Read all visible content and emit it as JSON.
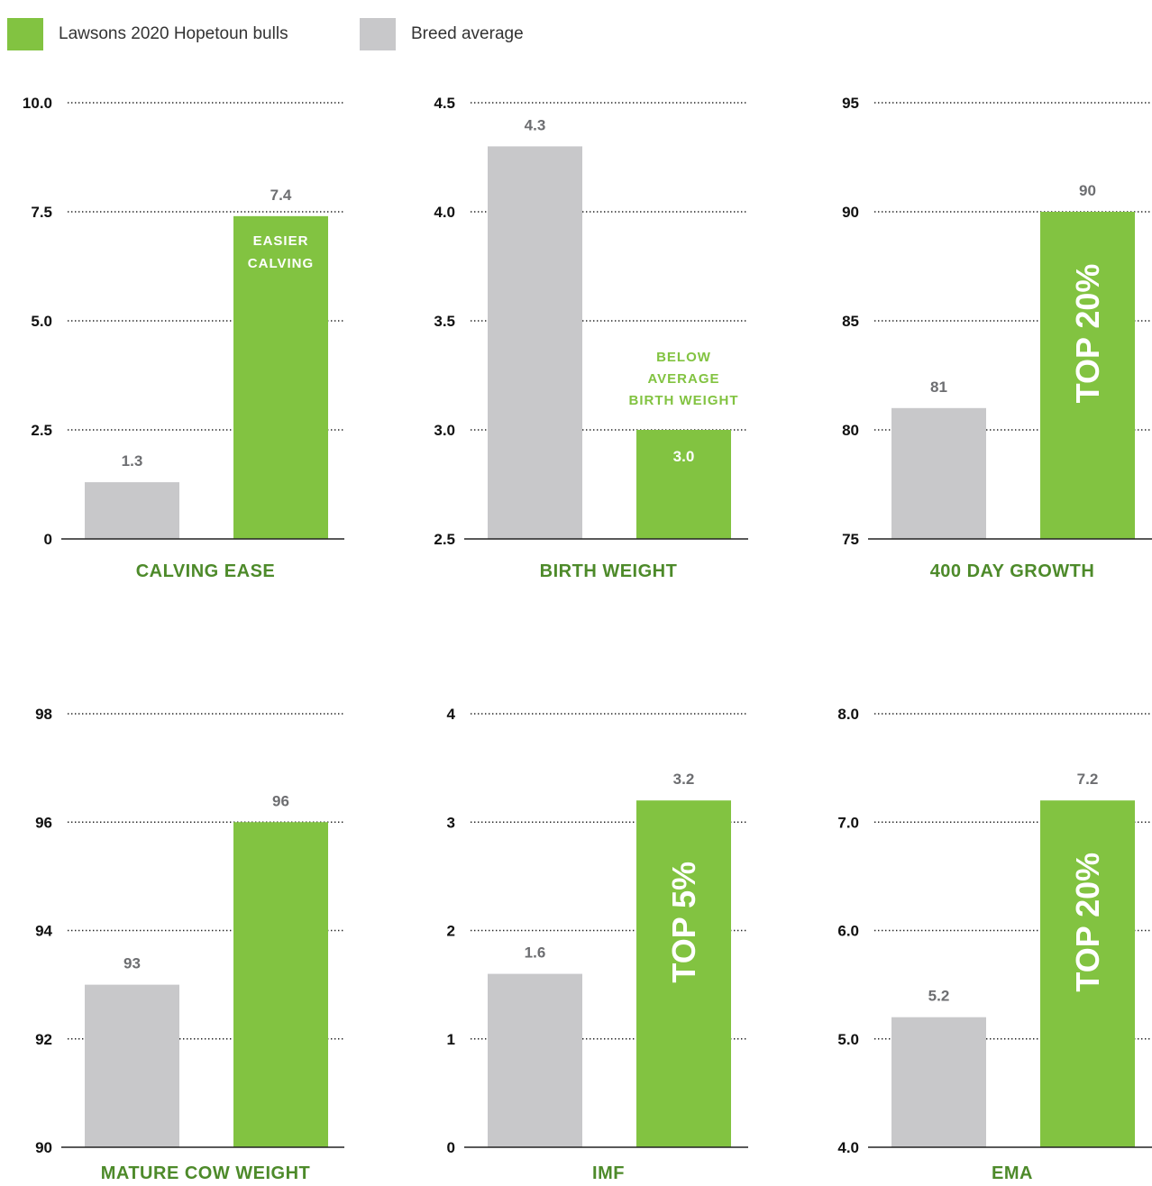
{
  "legend": {
    "items": [
      {
        "label": "Lawsons 2020 Hopetoun bulls",
        "color": "#82c341"
      },
      {
        "label": "Breed average",
        "color": "#c8c8ca"
      }
    ]
  },
  "colors": {
    "lawsons": "#82c341",
    "breed": "#c8c8ca",
    "value_text": "#6d6e71",
    "title_text": "#4d8a2a",
    "axis_text": "#111111",
    "grid": "#222222"
  },
  "chart_data": [
    {
      "type": "bar",
      "title": "CALVING EASE",
      "ylim": [
        0,
        10
      ],
      "yticks": [
        "0",
        "2.5",
        "5.0",
        "7.5",
        "10.0"
      ],
      "grid": true,
      "series": [
        {
          "name": "Breed average",
          "values": [
            1.3
          ],
          "labels": [
            "1.3"
          ]
        },
        {
          "name": "Lawsons 2020 Hopetoun bulls",
          "values": [
            7.4
          ],
          "labels": [
            "7.4"
          ]
        }
      ],
      "annotation": {
        "text": [
          "EASIER",
          "CALVING"
        ],
        "placement": "inside-top",
        "color": "#ffffff"
      }
    },
    {
      "type": "bar",
      "title": "BIRTH WEIGHT",
      "ylim": [
        2.5,
        4.5
      ],
      "yticks": [
        "2.5",
        "3.0",
        "3.5",
        "4.0",
        "4.5"
      ],
      "grid": true,
      "series": [
        {
          "name": "Breed average",
          "values": [
            4.3
          ],
          "labels": [
            "4.3"
          ]
        },
        {
          "name": "Lawsons 2020 Hopetoun bulls",
          "values": [
            3.0
          ],
          "labels": [
            "3.0"
          ],
          "label_inside": true
        }
      ],
      "annotation": {
        "text": [
          "BELOW",
          "AVERAGE",
          "BIRTH WEIGHT"
        ],
        "placement": "above",
        "color": "#82c341"
      }
    },
    {
      "type": "bar",
      "title": "400 DAY GROWTH",
      "ylim": [
        75,
        95
      ],
      "yticks": [
        "75",
        "80",
        "85",
        "90",
        "95"
      ],
      "grid": true,
      "series": [
        {
          "name": "Breed average",
          "values": [
            81
          ],
          "labels": [
            "81"
          ]
        },
        {
          "name": "Lawsons 2020 Hopetoun bulls",
          "values": [
            90
          ],
          "labels": [
            "90"
          ]
        }
      ],
      "annotation": {
        "text": [
          "TOP 20%"
        ],
        "placement": "vertical",
        "color": "#ffffff"
      }
    },
    {
      "type": "bar",
      "title": "MATURE COW WEIGHT",
      "ylim": [
        90,
        98
      ],
      "yticks": [
        "90",
        "92",
        "94",
        "96",
        "98"
      ],
      "grid": true,
      "series": [
        {
          "name": "Breed average",
          "values": [
            93
          ],
          "labels": [
            "93"
          ]
        },
        {
          "name": "Lawsons 2020 Hopetoun bulls",
          "values": [
            96
          ],
          "labels": [
            "96"
          ]
        }
      ],
      "annotation": null
    },
    {
      "type": "bar",
      "title": "IMF",
      "ylim": [
        0,
        4
      ],
      "yticks": [
        "0",
        "1",
        "2",
        "3",
        "4"
      ],
      "grid": true,
      "series": [
        {
          "name": "Breed average",
          "values": [
            1.6
          ],
          "labels": [
            "1.6"
          ]
        },
        {
          "name": "Lawsons 2020 Hopetoun bulls",
          "values": [
            3.2
          ],
          "labels": [
            "3.2"
          ]
        }
      ],
      "annotation": {
        "text": [
          "TOP 5%"
        ],
        "placement": "vertical",
        "color": "#ffffff"
      }
    },
    {
      "type": "bar",
      "title": "EMA",
      "ylim": [
        4.0,
        8.0
      ],
      "yticks": [
        "4.0",
        "5.0",
        "6.0",
        "7.0",
        "8.0"
      ],
      "grid": true,
      "series": [
        {
          "name": "Breed average",
          "values": [
            5.2
          ],
          "labels": [
            "5.2"
          ]
        },
        {
          "name": "Lawsons 2020 Hopetoun bulls",
          "values": [
            7.2
          ],
          "labels": [
            "7.2"
          ]
        }
      ],
      "annotation": {
        "text": [
          "TOP 20%"
        ],
        "placement": "vertical",
        "color": "#ffffff"
      }
    }
  ]
}
